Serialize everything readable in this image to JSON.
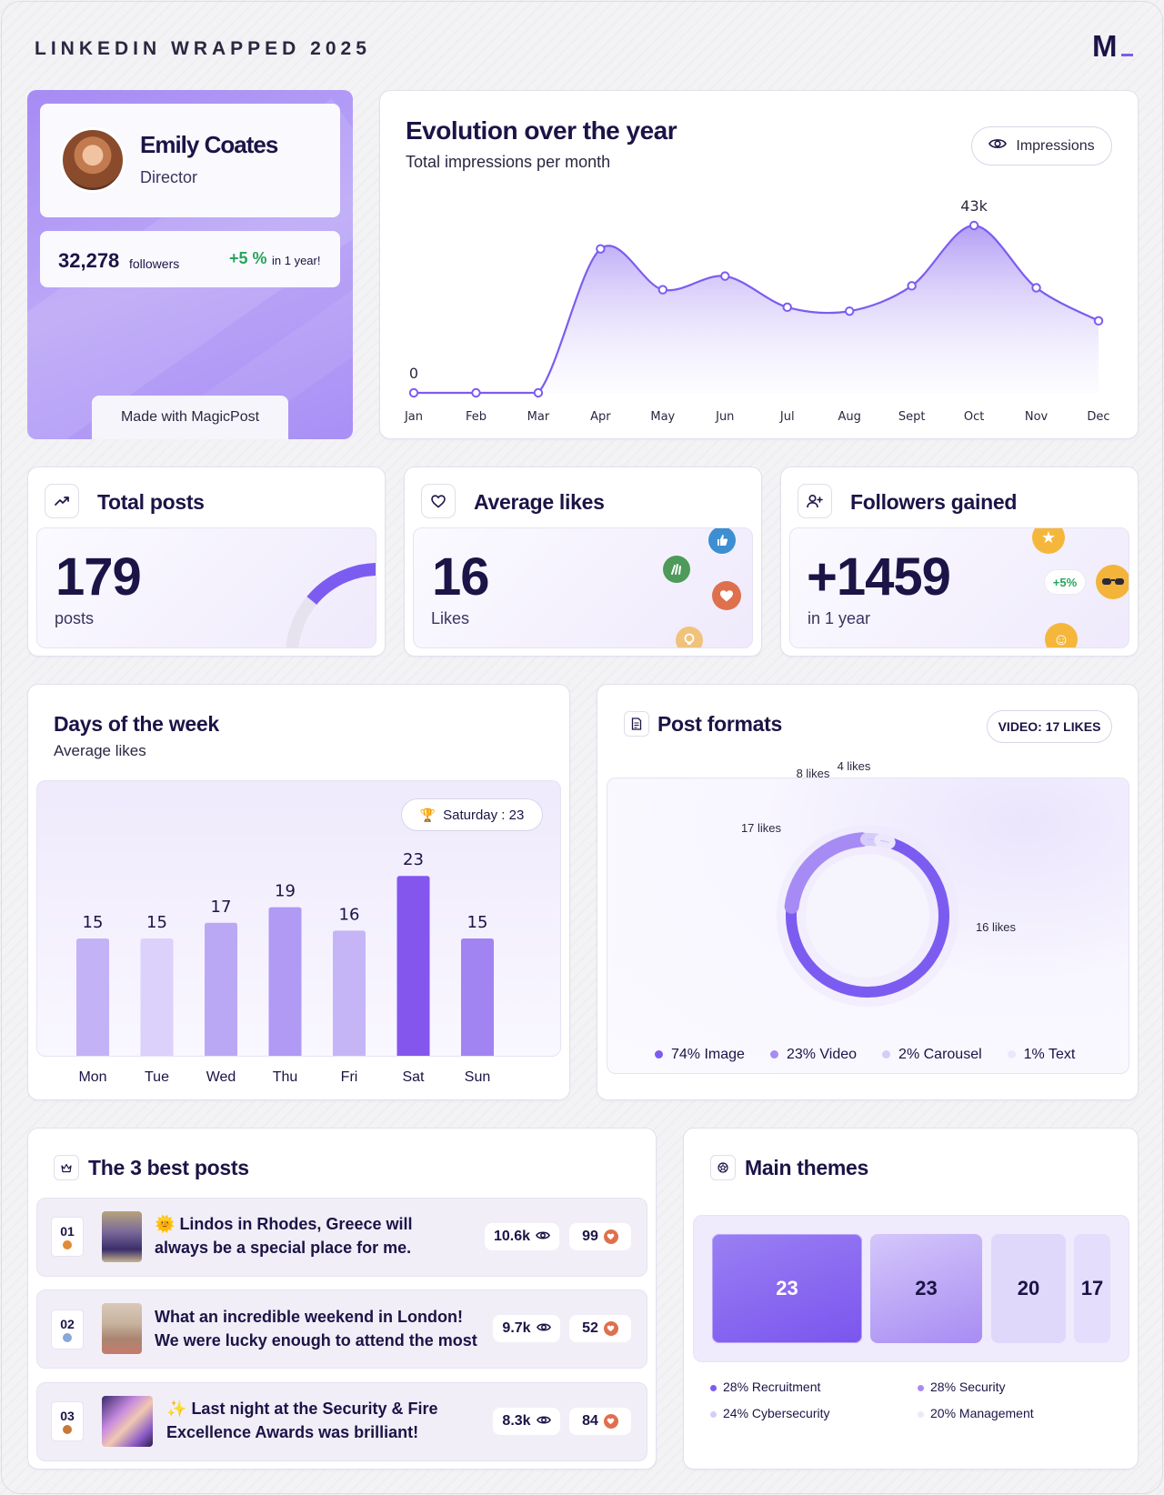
{
  "header": {
    "title": "LINKEDIN WRAPPED 2025",
    "logo_text": "M",
    "brand_color": "#7c5cf0"
  },
  "profile": {
    "name": "Emily Coates",
    "role": "Director",
    "followers_count": "32,278",
    "followers_label": "followers",
    "growth": "+5 %",
    "growth_label": "in 1 year!",
    "made_with": "Made with MagicPost"
  },
  "evolution": {
    "title": "Evolution over the year",
    "subtitle": "Total impressions per month",
    "toggle_label": "Impressions",
    "toggle_icon": "eye-icon",
    "peak_label": "43k",
    "zero_label": "0"
  },
  "chart_data": [
    {
      "type": "area",
      "title": "Evolution over the year",
      "subtitle": "Total impressions per month",
      "categories": [
        "Jan",
        "Feb",
        "Mar",
        "Apr",
        "May",
        "Jun",
        "Jul",
        "Aug",
        "Sept",
        "Oct",
        "Nov",
        "Dec"
      ],
      "series": [
        {
          "name": "Impressions",
          "values": [
            0,
            0,
            0,
            37000,
            26500,
            30000,
            22000,
            21000,
            27500,
            43000,
            27000,
            18500
          ]
        }
      ],
      "annotations": [
        "0",
        "43k"
      ]
    },
    {
      "type": "bar",
      "title": "Days of the week",
      "subtitle": "Average likes",
      "categories": [
        "Mon",
        "Tue",
        "Wed",
        "Thu",
        "Fri",
        "Sat",
        "Sun"
      ],
      "values": [
        15,
        15,
        17,
        19,
        16,
        23,
        15
      ],
      "highlight": "Saturday : 23"
    },
    {
      "type": "pie",
      "title": "Post formats",
      "categories": [
        "Image",
        "Video",
        "Carousel",
        "Text"
      ],
      "values": [
        74,
        23,
        2,
        1
      ],
      "labels": [
        "16 likes",
        "17 likes",
        "8 likes",
        "4 likes"
      ]
    }
  ],
  "stats": {
    "total_posts": {
      "title": "Total posts",
      "value": "179",
      "label": "posts",
      "icon": "trending-up-icon",
      "gauge_fraction": 0.2
    },
    "average_likes": {
      "title": "Average likes",
      "value": "16",
      "label": "Likes",
      "icon": "heart-icon"
    },
    "followers_gained": {
      "title": "Followers gained",
      "value": "+1459",
      "label": "in 1 year",
      "badge": "+5%",
      "icon": "user-plus-icon"
    }
  },
  "days": {
    "title": "Days of the week",
    "subtitle": "Average likes",
    "badge": "Saturday : 23",
    "colors": [
      "#c4b2f6",
      "#dcd1fa",
      "#bba8f5",
      "#b09af3",
      "#c6b5f6",
      "#8456ee",
      "#a283f2"
    ]
  },
  "formats": {
    "title": "Post formats",
    "badge": "VIDEO: 17 LIKES",
    "legend": [
      {
        "label": "74% Image",
        "color": "#7c5cf0"
      },
      {
        "label": "23% Video",
        "color": "#a78bf5"
      },
      {
        "label": "2% Carousel",
        "color": "#d6ccfa"
      },
      {
        "label": "1% Text",
        "color": "#ece7fc"
      }
    ]
  },
  "best_posts": {
    "title": "The 3 best posts",
    "items": [
      {
        "rank": "01",
        "medal_color": "#e08a3a",
        "emoji": "🌞",
        "text": "Lindos in Rhodes, Greece will always be a special place for me.",
        "views": "10.6k",
        "likes": "99"
      },
      {
        "rank": "02",
        "medal_color": "#8aa8d6",
        "emoji": "",
        "text": "What an incredible weekend in London! We were lucky enough to attend the most",
        "views": "9.7k",
        "likes": "52"
      },
      {
        "rank": "03",
        "medal_color": "#c8783a",
        "emoji": "✨",
        "text": "Last night at the Security & Fire Excellence Awards was brilliant!",
        "views": "8.3k",
        "likes": "84"
      }
    ]
  },
  "themes": {
    "title": "Main themes",
    "boxes": [
      "23",
      "23",
      "20",
      "17"
    ],
    "legend": [
      {
        "label": "28% Recruitment",
        "color": "#7c5cf0"
      },
      {
        "label": "28% Security",
        "color": "#a78bf5"
      },
      {
        "label": "24% Cybersecurity",
        "color": "#d6ccfa"
      },
      {
        "label": "20% Management",
        "color": "#ece7fc"
      }
    ]
  }
}
